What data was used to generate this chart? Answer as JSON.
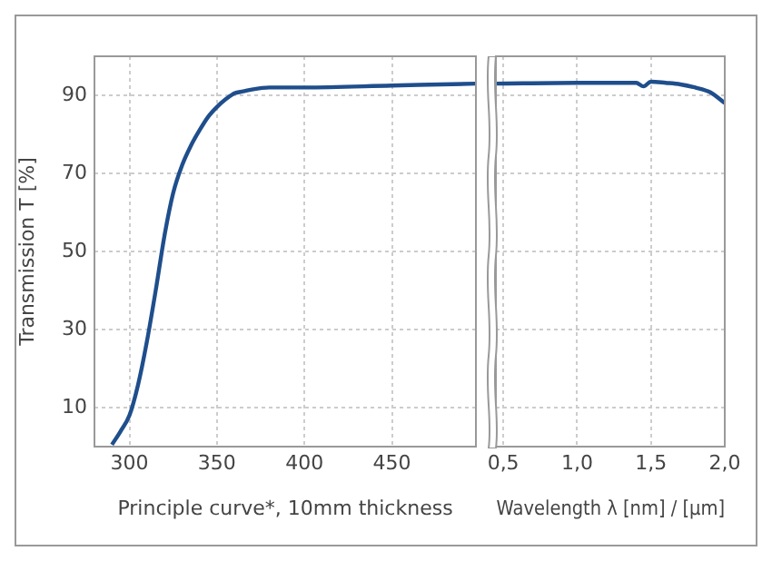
{
  "chart_data": [
    {
      "type": "line",
      "xlabel": "Principle curve*, 10mm thickness",
      "ylabel": "Transmission T [%]",
      "xlim": [
        280,
        498
      ],
      "xticks": [
        300,
        350,
        400,
        450
      ],
      "ylim": [
        0,
        100
      ],
      "yticks": [
        10,
        30,
        50,
        70,
        90
      ],
      "grid": true,
      "legend": false,
      "marker": "none",
      "line_style": "solid",
      "series": [
        {
          "color": "#1f4e8c",
          "x": [
            290,
            295,
            300,
            305,
            310,
            315,
            320,
            325,
            330,
            335,
            340,
            345,
            350,
            355,
            360,
            365,
            370,
            380,
            400,
            450,
            498
          ],
          "values": [
            0.5,
            4,
            8,
            16,
            27,
            40,
            54,
            65,
            72,
            77,
            81,
            84.5,
            87,
            89,
            90.5,
            91,
            91.5,
            92,
            92,
            92.5,
            93
          ]
        }
      ]
    },
    {
      "type": "line",
      "xlabel": "Wavelength λ [nm] / [µm]",
      "xlim": [
        0.45,
        2.0
      ],
      "xticks": [
        {
          "value": 0.5,
          "label": "0,5"
        },
        {
          "value": 1.0,
          "label": "1,0"
        },
        {
          "value": 1.5,
          "label": "1,5"
        },
        {
          "value": 2.0,
          "label": "2,0"
        }
      ],
      "ylim": [
        0,
        100
      ],
      "yticks": [
        10,
        30,
        50,
        70,
        90
      ],
      "tick_labels": "x",
      "grid": true,
      "legend": false,
      "marker": "none",
      "line_style": "solid",
      "series": [
        {
          "color": "#1f4e8c",
          "x": [
            0.45,
            1.0,
            1.4,
            1.45,
            1.5,
            1.6,
            1.7,
            1.8,
            1.9,
            2.0
          ],
          "values": [
            93,
            93.2,
            93.2,
            92.3,
            93.5,
            93.2,
            92.8,
            92,
            90.8,
            88
          ]
        }
      ]
    }
  ]
}
